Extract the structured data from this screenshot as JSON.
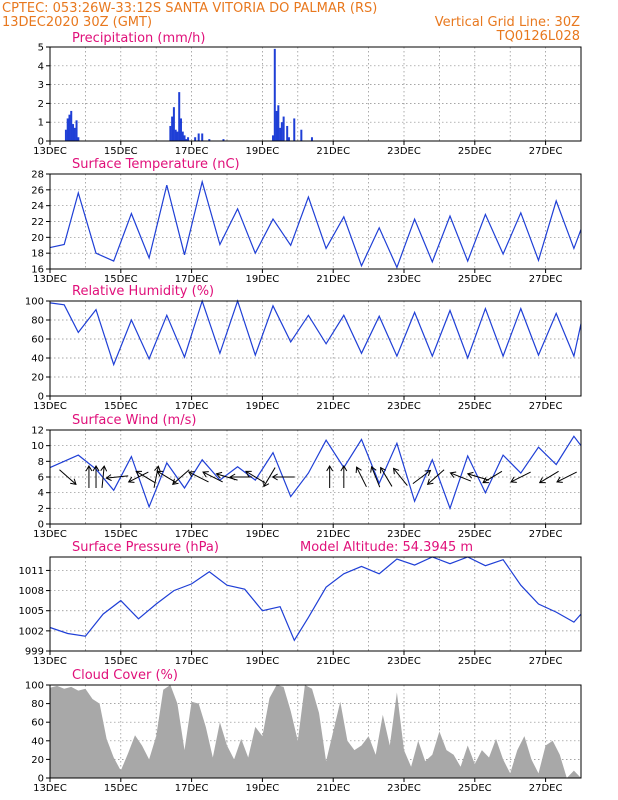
{
  "header": {
    "line1_left": "CPTEC:   053:26W-33:12S   SANTA VITORIA DO PALMAR (RS)",
    "line2_left": "13DEC2020 30Z (GMT)",
    "line2_right": "Vertical Grid Line: 30Z",
    "line3_right": "TQ0126L028"
  },
  "colors": {
    "header": "#e8781e",
    "panel_title": "#e0107a",
    "series": "#1f3fd6",
    "cloud": "#a8a8a8",
    "arrow": "#000000"
  },
  "chart_data": [
    {
      "type": "bar",
      "title": "Precipitation (mm/h)",
      "x_tick_labels": [
        "13DEC",
        "15DEC",
        "17DEC",
        "19DEC",
        "21DEC",
        "23DEC",
        "25DEC",
        "27DEC"
      ],
      "xlim_days": [
        13,
        28
      ],
      "ylim": [
        0,
        5
      ],
      "y_ticks": [
        0,
        1,
        2,
        3,
        4,
        5
      ],
      "x": [
        13.45,
        13.5,
        13.55,
        13.6,
        13.65,
        13.7,
        13.75,
        13.8,
        16.4,
        16.45,
        16.5,
        16.55,
        16.6,
        16.65,
        16.7,
        16.75,
        16.8,
        16.85,
        16.9,
        17.1,
        17.2,
        17.3,
        17.5,
        17.9,
        19.3,
        19.35,
        19.4,
        19.45,
        19.5,
        19.55,
        19.6,
        19.7,
        19.75,
        19.9,
        20.1,
        20.4
      ],
      "values": [
        0.6,
        1.2,
        1.4,
        1.6,
        0.9,
        0.7,
        1.1,
        0.2,
        0.8,
        1.3,
        1.8,
        0.6,
        0.5,
        2.6,
        1.2,
        0.5,
        0.3,
        0.1,
        0.2,
        0.2,
        0.4,
        0.4,
        0.1,
        0.1,
        0.3,
        4.9,
        1.6,
        1.9,
        0.7,
        1.0,
        1.3,
        0.8,
        0.2,
        1.2,
        0.6,
        0.2
      ]
    },
    {
      "type": "line",
      "title": "Surface Temperature (nC)",
      "x_tick_labels": [
        "13DEC",
        "15DEC",
        "17DEC",
        "19DEC",
        "21DEC",
        "23DEC",
        "25DEC",
        "27DEC"
      ],
      "xlim_days": [
        13,
        28
      ],
      "ylim": [
        16,
        28
      ],
      "y_ticks": [
        16,
        18,
        20,
        22,
        24,
        26,
        28
      ],
      "x": [
        13.0,
        13.4,
        13.8,
        14.3,
        14.8,
        15.3,
        15.8,
        16.3,
        16.8,
        17.3,
        17.8,
        18.3,
        18.8,
        19.3,
        19.8,
        20.3,
        20.8,
        21.3,
        21.8,
        22.3,
        22.8,
        23.3,
        23.8,
        24.3,
        24.8,
        25.3,
        25.8,
        26.3,
        26.8,
        27.3,
        27.8,
        28.0
      ],
      "values": [
        18.7,
        19.1,
        25.6,
        18.0,
        17.0,
        23.0,
        17.4,
        26.6,
        17.8,
        27.0,
        19.1,
        23.6,
        18.0,
        22.3,
        19.0,
        25.1,
        18.6,
        22.6,
        16.4,
        21.2,
        16.2,
        22.3,
        16.9,
        22.7,
        17.0,
        22.9,
        17.9,
        23.1,
        17.1,
        24.6,
        18.6,
        21.0
      ]
    },
    {
      "type": "line",
      "title": "Relative Humidity (%)",
      "x_tick_labels": [
        "13DEC",
        "15DEC",
        "17DEC",
        "19DEC",
        "21DEC",
        "23DEC",
        "25DEC",
        "27DEC"
      ],
      "xlim_days": [
        13,
        28
      ],
      "ylim": [
        0,
        100
      ],
      "y_ticks": [
        0,
        20,
        40,
        60,
        80,
        100
      ],
      "x": [
        13.0,
        13.4,
        13.8,
        14.3,
        14.8,
        15.3,
        15.8,
        16.3,
        16.8,
        17.3,
        17.8,
        18.3,
        18.8,
        19.3,
        19.8,
        20.3,
        20.8,
        21.3,
        21.8,
        22.3,
        22.8,
        23.3,
        23.8,
        24.3,
        24.8,
        25.3,
        25.8,
        26.3,
        26.8,
        27.3,
        27.8,
        28.0
      ],
      "values": [
        98,
        96,
        67,
        91,
        33,
        80,
        39,
        85,
        41,
        100,
        45,
        100,
        43,
        95,
        57,
        85,
        55,
        85,
        45,
        84,
        42,
        88,
        42,
        90,
        40,
        92,
        42,
        92,
        43,
        87,
        42,
        76
      ]
    },
    {
      "type": "line",
      "title": "Surface Wind (m/s)",
      "x_tick_labels": [
        "13DEC",
        "15DEC",
        "17DEC",
        "19DEC",
        "21DEC",
        "23DEC",
        "25DEC",
        "27DEC"
      ],
      "xlim_days": [
        13,
        28
      ],
      "ylim": [
        0,
        12
      ],
      "y_ticks": [
        0,
        2,
        4,
        6,
        8,
        10,
        12
      ],
      "x": [
        13.0,
        13.4,
        13.8,
        14.3,
        14.8,
        15.3,
        15.8,
        16.3,
        16.8,
        17.3,
        17.8,
        18.3,
        18.8,
        19.3,
        19.8,
        20.3,
        20.8,
        21.3,
        21.8,
        22.3,
        22.8,
        23.3,
        23.8,
        24.3,
        24.8,
        25.3,
        25.8,
        26.3,
        26.8,
        27.3,
        27.8,
        28.0
      ],
      "values": [
        7.2,
        8.0,
        8.8,
        7.0,
        4.3,
        8.6,
        2.2,
        7.8,
        4.6,
        8.2,
        5.6,
        7.3,
        5.6,
        9.1,
        3.5,
        6.5,
        10.7,
        7.2,
        10.8,
        5.2,
        10.3,
        2.9,
        8.2,
        2.0,
        8.7,
        4.0,
        8.8,
        6.5,
        9.8,
        7.6,
        11.2,
        10.0
      ],
      "arrows": [
        {
          "day": 13.5,
          "dx": 0.9,
          "dy": 0.8
        },
        {
          "day": 14.1,
          "dx": 0.0,
          "dy": -1.0
        },
        {
          "day": 14.3,
          "dx": 0.0,
          "dy": -1.0
        },
        {
          "day": 14.5,
          "dx": 0.1,
          "dy": -1.0
        },
        {
          "day": 14.9,
          "dx": -1.0,
          "dy": 0.1
        },
        {
          "day": 15.5,
          "dx": -1.0,
          "dy": 0.5
        },
        {
          "day": 15.7,
          "dx": -1.0,
          "dy": -0.6
        },
        {
          "day": 16.0,
          "dx": 0.2,
          "dy": -1.0
        },
        {
          "day": 16.3,
          "dx": -1.0,
          "dy": -0.6
        },
        {
          "day": 16.7,
          "dx": -0.9,
          "dy": 0.8
        },
        {
          "day": 17.2,
          "dx": -1.0,
          "dy": -0.5
        },
        {
          "day": 17.6,
          "dx": -1.0,
          "dy": -0.5
        },
        {
          "day": 18.0,
          "dx": -1.0,
          "dy": -0.3
        },
        {
          "day": 18.4,
          "dx": -1.0,
          "dy": 0.0
        },
        {
          "day": 18.8,
          "dx": -1.0,
          "dy": -0.6
        },
        {
          "day": 19.2,
          "dx": -0.6,
          "dy": 1.0
        },
        {
          "day": 19.6,
          "dx": -1.0,
          "dy": 0.0
        },
        {
          "day": 20.9,
          "dx": 0.0,
          "dy": -1.0
        },
        {
          "day": 21.3,
          "dx": 0.0,
          "dy": -1.0
        },
        {
          "day": 21.8,
          "dx": -0.5,
          "dy": -1.0
        },
        {
          "day": 22.2,
          "dx": -0.4,
          "dy": -1.0
        },
        {
          "day": 22.5,
          "dx": -0.6,
          "dy": -1.0
        },
        {
          "day": 22.9,
          "dx": -0.8,
          "dy": -1.0
        },
        {
          "day": 23.5,
          "dx": 0.8,
          "dy": -0.6
        },
        {
          "day": 23.9,
          "dx": -0.9,
          "dy": 0.8
        },
        {
          "day": 24.6,
          "dx": -1.0,
          "dy": -0.4
        },
        {
          "day": 25.1,
          "dx": -1.0,
          "dy": -0.3
        },
        {
          "day": 25.5,
          "dx": -1.0,
          "dy": 0.6
        },
        {
          "day": 26.3,
          "dx": -1.0,
          "dy": 0.5
        },
        {
          "day": 27.1,
          "dx": -1.0,
          "dy": 0.6
        },
        {
          "day": 27.6,
          "dx": -1.0,
          "dy": 0.5
        }
      ]
    },
    {
      "type": "line",
      "title": "Surface Pressure (hPa)",
      "annotation": "Model Altitude: 54.3945  m",
      "x_tick_labels": [
        "13DEC",
        "15DEC",
        "17DEC",
        "19DEC",
        "21DEC",
        "23DEC",
        "25DEC",
        "27DEC"
      ],
      "xlim_days": [
        13,
        28
      ],
      "ylim": [
        999,
        1013
      ],
      "y_ticks": [
        999,
        1002,
        1005,
        1008,
        1011
      ],
      "x": [
        13.0,
        13.5,
        14.0,
        14.5,
        15.0,
        15.5,
        16.0,
        16.5,
        17.0,
        17.5,
        18.0,
        18.5,
        19.0,
        19.5,
        19.9,
        20.3,
        20.8,
        21.3,
        21.8,
        22.3,
        22.8,
        23.3,
        23.8,
        24.3,
        24.8,
        25.3,
        25.8,
        26.3,
        26.8,
        27.3,
        27.8,
        28.0
      ],
      "values": [
        1002.5,
        1001.6,
        1001.2,
        1004.5,
        1006.5,
        1003.8,
        1006.0,
        1008.0,
        1009.0,
        1010.8,
        1008.8,
        1008.2,
        1005.0,
        1005.6,
        1000.6,
        1004.0,
        1008.5,
        1010.5,
        1011.6,
        1010.5,
        1012.7,
        1011.8,
        1013.0,
        1012.0,
        1013.0,
        1011.7,
        1012.6,
        1008.8,
        1006.0,
        1004.8,
        1003.3,
        1004.5
      ]
    },
    {
      "type": "area",
      "title": "Cloud Cover (%)",
      "x_tick_labels": [
        "13DEC",
        "15DEC",
        "17DEC",
        "19DEC",
        "21DEC",
        "23DEC",
        "25DEC",
        "27DEC"
      ],
      "xlim_days": [
        13,
        28
      ],
      "ylim": [
        0,
        100
      ],
      "y_ticks": [
        0,
        20,
        40,
        60,
        80,
        100
      ],
      "x": [
        13.0,
        13.2,
        13.4,
        13.6,
        13.8,
        14.0,
        14.2,
        14.4,
        14.6,
        14.8,
        15.0,
        15.2,
        15.4,
        15.6,
        15.8,
        16.0,
        16.2,
        16.4,
        16.6,
        16.8,
        17.0,
        17.2,
        17.4,
        17.6,
        17.8,
        18.0,
        18.2,
        18.4,
        18.6,
        18.8,
        19.0,
        19.2,
        19.4,
        19.6,
        19.8,
        20.0,
        20.2,
        20.4,
        20.6,
        20.8,
        21.0,
        21.2,
        21.4,
        21.6,
        21.8,
        22.0,
        22.2,
        22.4,
        22.6,
        22.8,
        23.0,
        23.2,
        23.4,
        23.6,
        23.8,
        24.0,
        24.2,
        24.4,
        24.6,
        24.8,
        25.0,
        25.2,
        25.4,
        25.6,
        25.8,
        26.0,
        26.2,
        26.4,
        26.6,
        26.8,
        27.0,
        27.2,
        27.4,
        27.6,
        27.8,
        28.0
      ],
      "values": [
        97,
        99,
        96,
        98,
        94,
        96,
        85,
        80,
        42,
        22,
        8,
        26,
        46,
        35,
        20,
        45,
        95,
        100,
        80,
        30,
        82,
        80,
        55,
        22,
        60,
        35,
        20,
        42,
        22,
        55,
        45,
        86,
        100,
        98,
        72,
        40,
        100,
        96,
        70,
        18,
        50,
        82,
        40,
        30,
        35,
        45,
        25,
        68,
        35,
        92,
        30,
        12,
        40,
        18,
        25,
        50,
        30,
        25,
        12,
        35,
        15,
        30,
        22,
        42,
        20,
        5,
        30,
        45,
        20,
        5,
        35,
        40,
        25,
        0,
        8,
        0
      ]
    }
  ]
}
